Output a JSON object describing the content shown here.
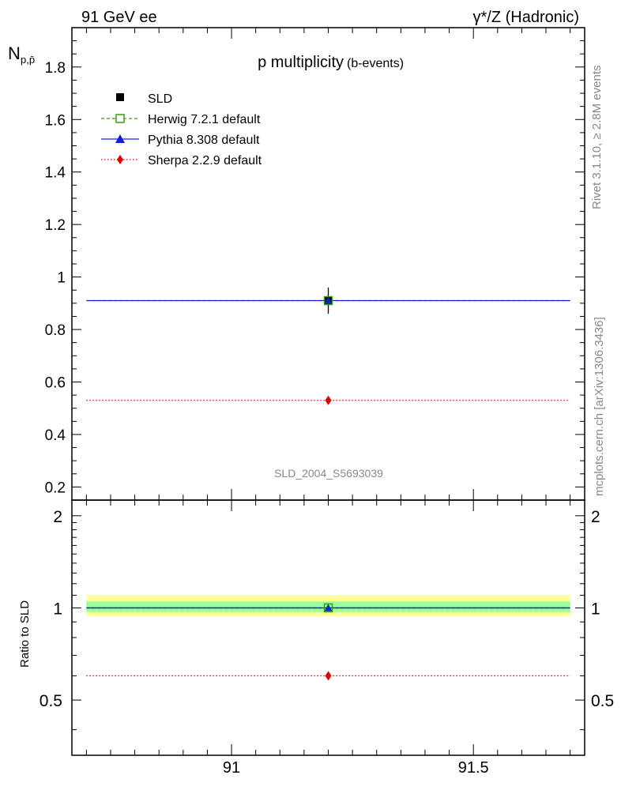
{
  "header": {
    "left": "91 GeV ee",
    "right": "γ*/Z (Hadronic)"
  },
  "side_labels": {
    "rivet": "Rivet 3.1.10, ≥ 2.8M events",
    "mcplots": "mcplots.cern.ch [arXiv:1306.3436]"
  },
  "watermark": "SLD_2004_S5693039",
  "colors": {
    "data": "#000000",
    "herwig": "#3a9a1a",
    "pythia": "#1020d0",
    "sherpa": "#e00000",
    "band_outer": "#ffff99",
    "band_inner": "#99ff99"
  },
  "chart_data": [
    {
      "type": "scatter",
      "title": "p multiplicity",
      "title_suffix": "(b-events)",
      "ylabel": "N",
      "ylabel_sub": "p,p̄",
      "xlim": [
        90.67,
        91.73
      ],
      "ylim": [
        0.15,
        1.95
      ],
      "ytick_labels": [
        "0.2",
        "0.4",
        "0.6",
        "0.8",
        "1",
        "1.2",
        "1.4",
        "1.6",
        "1.8"
      ],
      "legend": [
        {
          "label": "SLD",
          "key": "data"
        },
        {
          "label": "Herwig 7.2.1 default",
          "key": "herwig"
        },
        {
          "label": "Pythia 8.308 default",
          "key": "pythia"
        },
        {
          "label": "Sherpa 2.2.9 default",
          "key": "sherpa"
        }
      ],
      "series": [
        {
          "name": "SLD",
          "key": "data",
          "x": [
            91.2
          ],
          "y": [
            0.91
          ],
          "y_err": [
            0.05
          ]
        },
        {
          "name": "Herwig 7.2.1 default",
          "key": "herwig",
          "x_range": [
            90.7,
            91.7
          ],
          "x": [
            91.2
          ],
          "y": [
            0.91
          ]
        },
        {
          "name": "Pythia 8.308 default",
          "key": "pythia",
          "x_range": [
            90.7,
            91.7
          ],
          "x": [
            91.2
          ],
          "y": [
            0.91
          ]
        },
        {
          "name": "Sherpa 2.2.9 default",
          "key": "sherpa",
          "x_range": [
            90.7,
            91.7
          ],
          "x": [
            91.2
          ],
          "y": [
            0.53
          ]
        }
      ]
    },
    {
      "type": "line",
      "ylabel": "Ratio to SLD",
      "xlim": [
        90.67,
        91.73
      ],
      "ylim": [
        0.33,
        2.25
      ],
      "ytick_labels": [
        "0.5",
        "1",
        "2"
      ],
      "xtick_labels": [
        "91",
        "91.5"
      ],
      "bands": {
        "x_range": [
          90.7,
          91.7
        ],
        "outer": [
          0.94,
          1.1
        ],
        "inner": [
          0.97,
          1.05
        ]
      },
      "series": [
        {
          "name": "Herwig 7.2.1 default",
          "key": "herwig",
          "x_range": [
            90.7,
            91.7
          ],
          "x": [
            91.2
          ],
          "y": [
            1.0
          ]
        },
        {
          "name": "Pythia 8.308 default",
          "key": "pythia",
          "x_range": [
            90.7,
            91.7
          ],
          "x": [
            91.2
          ],
          "y": [
            1.0
          ]
        },
        {
          "name": "Sherpa 2.2.9 default",
          "key": "sherpa",
          "x_range": [
            90.7,
            91.7
          ],
          "x": [
            91.2
          ],
          "y": [
            0.6
          ]
        }
      ]
    }
  ]
}
